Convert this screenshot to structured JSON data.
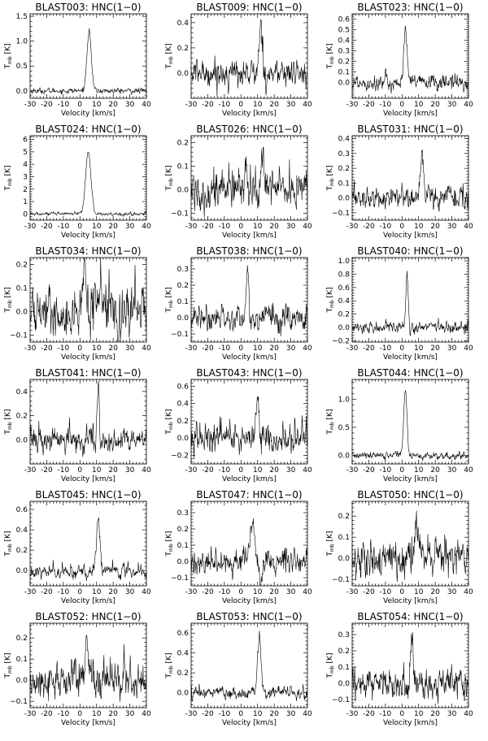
{
  "chart_data": [
    {
      "type": "line",
      "title": "BLAST003: HNC(1−0)",
      "xlabel": "Velocity [km/s]",
      "ylabel": "T",
      "ylabel_sub": "mb",
      "ylabel_unit": " [K]",
      "xlim": [
        -30,
        40
      ],
      "xticks": [
        -30,
        -20,
        -10,
        0,
        10,
        20,
        30,
        40
      ],
      "ylim": [
        -0.15,
        1.55
      ],
      "yticks": [
        0.0,
        0.5,
        1.0,
        1.5
      ],
      "ytick_labels": [
        "0.0",
        "0.5",
        "1.0",
        "1.5"
      ],
      "baseline": 0.0,
      "noise": 0.025,
      "lines": [
        {
          "v": 5.5,
          "amp": 1.22,
          "w": 1.3
        }
      ]
    },
    {
      "type": "line",
      "title": "BLAST009: HNC(1−0)",
      "xlabel": "Velocity [km/s]",
      "ylabel": "T",
      "ylabel_sub": "mb",
      "ylabel_unit": " [K]",
      "xlim": [
        -30,
        40
      ],
      "xticks": [
        -30,
        -20,
        -10,
        0,
        10,
        20,
        30,
        40
      ],
      "ylim": [
        -0.2,
        0.47
      ],
      "yticks": [
        0.0,
        0.2,
        0.4
      ],
      "ytick_labels": [
        "0.0",
        "0.2",
        "0.4"
      ],
      "baseline": 0.0,
      "noise": 0.05,
      "lines": [
        {
          "v": 12,
          "amp": 0.4,
          "w": 0.9
        }
      ]
    },
    {
      "type": "line",
      "title": "BLAST023: HNC(1−0)",
      "xlabel": "Velocity [km/s]",
      "ylabel": "T",
      "ylabel_sub": "mb",
      "ylabel_unit": " [K]",
      "xlim": [
        -30,
        40
      ],
      "xticks": [
        -30,
        -20,
        -10,
        0,
        10,
        20,
        30,
        40
      ],
      "ylim": [
        -0.15,
        0.65
      ],
      "yticks": [
        0.0,
        0.1,
        0.2,
        0.3,
        0.4,
        0.5,
        0.6
      ],
      "ytick_labels": [
        "0.0",
        "0.1",
        "0.2",
        "0.3",
        "0.4",
        "0.5",
        "0.6"
      ],
      "baseline": 0.0,
      "noise": 0.035,
      "lines": [
        {
          "v": 2,
          "amp": 0.52,
          "w": 0.9
        }
      ]
    },
    {
      "type": "line",
      "title": "BLAST024: HNC(1−0)",
      "xlabel": "Velocity [km/s]",
      "ylabel": "T",
      "ylabel_sub": "mb",
      "ylabel_unit": " [K]",
      "xlim": [
        -30,
        40
      ],
      "xticks": [
        -30,
        -20,
        -10,
        0,
        10,
        20,
        30,
        40
      ],
      "ylim": [
        -0.5,
        6.3
      ],
      "yticks": [
        0,
        1,
        2,
        3,
        4,
        5,
        6
      ],
      "ytick_labels": [
        "0",
        "1",
        "2",
        "3",
        "4",
        "5",
        "6"
      ],
      "baseline": 0.0,
      "noise": 0.06,
      "lines": [
        {
          "v": 5,
          "amp": 5.0,
          "w": 1.6
        }
      ]
    },
    {
      "type": "line",
      "title": "BLAST026: HNC(1−0)",
      "xlabel": "Velocity [km/s]",
      "ylabel": "T",
      "ylabel_sub": "mb",
      "ylabel_unit": " [K]",
      "xlim": [
        -30,
        40
      ],
      "xticks": [
        -30,
        -20,
        -10,
        0,
        10,
        20,
        30,
        40
      ],
      "ylim": [
        -0.13,
        0.23
      ],
      "yticks": [
        -0.1,
        0.0,
        0.1,
        0.2
      ],
      "ytick_labels": [
        "−0.1",
        "0.0",
        "0.1",
        "0.2"
      ],
      "baseline": 0.0,
      "noise": 0.04,
      "lines": [
        {
          "v": 3,
          "amp": 0.16,
          "w": 0.7
        },
        {
          "v": 13,
          "amp": 0.14,
          "w": 0.7
        },
        {
          "v": 23,
          "amp": 0.1,
          "w": 0.7
        }
      ]
    },
    {
      "type": "line",
      "title": "BLAST031: HNC(1−0)",
      "xlabel": "Velocity [km/s]",
      "ylabel": "T",
      "ylabel_sub": "mb",
      "ylabel_unit": " [K]",
      "xlim": [
        -30,
        40
      ],
      "xticks": [
        -30,
        -20,
        -10,
        0,
        10,
        20,
        30,
        40
      ],
      "ylim": [
        -0.15,
        0.42
      ],
      "yticks": [
        -0.1,
        0.0,
        0.1,
        0.2,
        0.3,
        0.4
      ],
      "ytick_labels": [
        "−0.1",
        "0.0",
        "0.1",
        "0.2",
        "0.3",
        "0.4"
      ],
      "baseline": 0.0,
      "noise": 0.035,
      "lines": [
        {
          "v": 12,
          "amp": 0.3,
          "w": 0.9
        }
      ]
    },
    {
      "type": "line",
      "title": "BLAST034: HNC(1−0)",
      "xlabel": "Velocity [km/s]",
      "ylabel": "T",
      "ylabel_sub": "mb",
      "ylabel_unit": " [K]",
      "xlim": [
        -30,
        40
      ],
      "xticks": [
        -30,
        -20,
        -10,
        0,
        10,
        20,
        30,
        40
      ],
      "ylim": [
        -0.13,
        0.23
      ],
      "yticks": [
        -0.1,
        0.0,
        0.1,
        0.2
      ],
      "ytick_labels": [
        "−0.1",
        "0.0",
        "0.1",
        "0.2"
      ],
      "baseline": 0.0,
      "noise": 0.045,
      "lines": [
        {
          "v": 3,
          "amp": 0.15,
          "w": 1.0
        },
        {
          "v": 13,
          "amp": 0.13,
          "w": 0.8
        }
      ]
    },
    {
      "type": "line",
      "title": "BLAST038: HNC(1−0)",
      "xlabel": "Velocity [km/s]",
      "ylabel": "T",
      "ylabel_sub": "mb",
      "ylabel_unit": " [K]",
      "xlim": [
        -30,
        40
      ],
      "xticks": [
        -30,
        -20,
        -10,
        0,
        10,
        20,
        30,
        40
      ],
      "ylim": [
        -0.15,
        0.37
      ],
      "yticks": [
        -0.1,
        0.0,
        0.1,
        0.2,
        0.3
      ],
      "ytick_labels": [
        "−0.1",
        "0.0",
        "0.1",
        "0.2",
        "0.3"
      ],
      "baseline": 0.0,
      "noise": 0.035,
      "lines": [
        {
          "v": 4,
          "amp": 0.29,
          "w": 0.8
        }
      ]
    },
    {
      "type": "line",
      "title": "BLAST040: HNC(1−0)",
      "xlabel": "Velocity [km/s]",
      "ylabel": "T",
      "ylabel_sub": "mb",
      "ylabel_unit": " [K]",
      "xlim": [
        -30,
        40
      ],
      "xticks": [
        -30,
        -20,
        -10,
        0,
        10,
        20,
        30,
        40
      ],
      "ylim": [
        -0.22,
        1.05
      ],
      "yticks": [
        -0.2,
        0.0,
        0.2,
        0.4,
        0.6,
        0.8,
        1.0
      ],
      "ytick_labels": [
        "−0.2",
        "0.0",
        "0.2",
        "0.4",
        "0.6",
        "0.8",
        "1.0"
      ],
      "baseline": 0.0,
      "noise": 0.04,
      "lines": [
        {
          "v": 3,
          "amp": 0.86,
          "w": 0.6
        }
      ]
    },
    {
      "type": "line",
      "title": "BLAST041: HNC(1−0)",
      "xlabel": "Velocity [km/s]",
      "ylabel": "T",
      "ylabel_sub": "mb",
      "ylabel_unit": " [K]",
      "xlim": [
        -30,
        40
      ],
      "xticks": [
        -30,
        -20,
        -10,
        0,
        10,
        20,
        30,
        40
      ],
      "ylim": [
        -0.2,
        0.5
      ],
      "yticks": [
        0.0,
        0.2,
        0.4
      ],
      "ytick_labels": [
        "0.0",
        "0.2",
        "0.4"
      ],
      "baseline": 0.0,
      "noise": 0.045,
      "lines": [
        {
          "v": 11,
          "amp": 0.42,
          "w": 0.6
        }
      ]
    },
    {
      "type": "line",
      "title": "BLAST043: HNC(1−0)",
      "xlabel": "Velocity [km/s]",
      "ylabel": "T",
      "ylabel_sub": "mb",
      "ylabel_unit": " [K]",
      "xlim": [
        -30,
        40
      ],
      "xticks": [
        -30,
        -20,
        -10,
        0,
        10,
        20,
        30,
        40
      ],
      "ylim": [
        -0.3,
        0.68
      ],
      "yticks": [
        -0.2,
        0.0,
        0.2,
        0.4,
        0.6
      ],
      "ytick_labels": [
        "−0.2",
        "0.0",
        "0.2",
        "0.4",
        "0.6"
      ],
      "baseline": 0.0,
      "noise": 0.08,
      "lines": [
        {
          "v": 10,
          "amp": 0.5,
          "w": 0.8
        }
      ]
    },
    {
      "type": "line",
      "title": "BLAST044: HNC(1−0)",
      "xlabel": "Velocity [km/s]",
      "ylabel": "T",
      "ylabel_sub": "mb",
      "ylabel_unit": " [K]",
      "xlim": [
        -30,
        40
      ],
      "xticks": [
        -30,
        -20,
        -10,
        0,
        10,
        20,
        30,
        40
      ],
      "ylim": [
        -0.15,
        1.35
      ],
      "yticks": [
        0.0,
        0.5,
        1.0
      ],
      "ytick_labels": [
        "0.0",
        "0.5",
        "1.0"
      ],
      "baseline": 0.0,
      "noise": 0.03,
      "lines": [
        {
          "v": 2,
          "amp": 1.15,
          "w": 1.0
        }
      ]
    },
    {
      "type": "line",
      "title": "BLAST045: HNC(1−0)",
      "xlabel": "Velocity [km/s]",
      "ylabel": "T",
      "ylabel_sub": "mb",
      "ylabel_unit": " [K]",
      "xlim": [
        -30,
        40
      ],
      "xticks": [
        -30,
        -20,
        -10,
        0,
        10,
        20,
        30,
        40
      ],
      "ylim": [
        -0.15,
        0.68
      ],
      "yticks": [
        0.0,
        0.2,
        0.4,
        0.6
      ],
      "ytick_labels": [
        "0.0",
        "0.2",
        "0.4",
        "0.6"
      ],
      "baseline": 0.0,
      "noise": 0.03,
      "lines": [
        {
          "v": 11,
          "amp": 0.5,
          "w": 1.0
        }
      ]
    },
    {
      "type": "line",
      "title": "BLAST047: HNC(1−0)",
      "xlabel": "Velocity [km/s]",
      "ylabel": "T",
      "ylabel_sub": "mb",
      "ylabel_unit": " [K]",
      "xlim": [
        -30,
        40
      ],
      "xticks": [
        -30,
        -20,
        -10,
        0,
        10,
        20,
        30,
        40
      ],
      "ylim": [
        -0.15,
        0.37
      ],
      "yticks": [
        -0.1,
        0.0,
        0.1,
        0.2,
        0.3
      ],
      "ytick_labels": [
        "−0.1",
        "0.0",
        "0.1",
        "0.2",
        "0.3"
      ],
      "baseline": 0.0,
      "noise": 0.035,
      "lines": [
        {
          "v": 7,
          "amp": 0.27,
          "w": 1.3
        },
        {
          "v": 12,
          "amp": -0.1,
          "w": 1.0
        }
      ]
    },
    {
      "type": "line",
      "title": "BLAST050: HNC(1−0)",
      "xlabel": "Velocity [km/s]",
      "ylabel": "T",
      "ylabel_sub": "mb",
      "ylabel_unit": " [K]",
      "xlim": [
        -30,
        40
      ],
      "xticks": [
        -30,
        -20,
        -10,
        0,
        10,
        20,
        30,
        40
      ],
      "ylim": [
        -0.13,
        0.27
      ],
      "yticks": [
        -0.1,
        0.0,
        0.1,
        0.2
      ],
      "ytick_labels": [
        "−0.1",
        "0.0",
        "0.1",
        "0.2"
      ],
      "baseline": 0.0,
      "noise": 0.04,
      "lines": [
        {
          "v": 9,
          "amp": 0.19,
          "w": 1.0
        }
      ]
    },
    {
      "type": "line",
      "title": "BLAST052: HNC(1−0)",
      "xlabel": "Velocity [km/s]",
      "ylabel": "T",
      "ylabel_sub": "mb",
      "ylabel_unit": " [K]",
      "xlim": [
        -30,
        40
      ],
      "xticks": [
        -30,
        -20,
        -10,
        0,
        10,
        20,
        30,
        40
      ],
      "ylim": [
        -0.13,
        0.27
      ],
      "yticks": [
        -0.1,
        0.0,
        0.1,
        0.2
      ],
      "ytick_labels": [
        "−0.1",
        "0.0",
        "0.1",
        "0.2"
      ],
      "baseline": 0.0,
      "noise": 0.04,
      "lines": [
        {
          "v": 4,
          "amp": 0.2,
          "w": 1.0
        }
      ]
    },
    {
      "type": "line",
      "title": "BLAST053: HNC(1−0)",
      "xlabel": "Velocity [km/s]",
      "ylabel": "T",
      "ylabel_sub": "mb",
      "ylabel_unit": " [K]",
      "xlim": [
        -30,
        40
      ],
      "xticks": [
        -30,
        -20,
        -10,
        0,
        10,
        20,
        30,
        40
      ],
      "ylim": [
        -0.15,
        0.7
      ],
      "yticks": [
        0.0,
        0.2,
        0.4,
        0.6
      ],
      "ytick_labels": [
        "0.0",
        "0.2",
        "0.4",
        "0.6"
      ],
      "baseline": 0.0,
      "noise": 0.03,
      "lines": [
        {
          "v": 11,
          "amp": 0.58,
          "w": 0.9
        }
      ]
    },
    {
      "type": "line",
      "title": "BLAST054: HNC(1−0)",
      "xlabel": "Velocity [km/s]",
      "ylabel": "T",
      "ylabel_sub": "mb",
      "ylabel_unit": " [K]",
      "xlim": [
        -30,
        40
      ],
      "xticks": [
        -30,
        -20,
        -10,
        0,
        10,
        20,
        30,
        40
      ],
      "ylim": [
        -0.15,
        0.37
      ],
      "yticks": [
        -0.1,
        0.0,
        0.1,
        0.2,
        0.3
      ],
      "ytick_labels": [
        "−0.1",
        "0.0",
        "0.1",
        "0.2",
        "0.3"
      ],
      "baseline": 0.0,
      "noise": 0.04,
      "lines": [
        {
          "v": 6,
          "amp": 0.27,
          "w": 0.8
        }
      ]
    }
  ]
}
